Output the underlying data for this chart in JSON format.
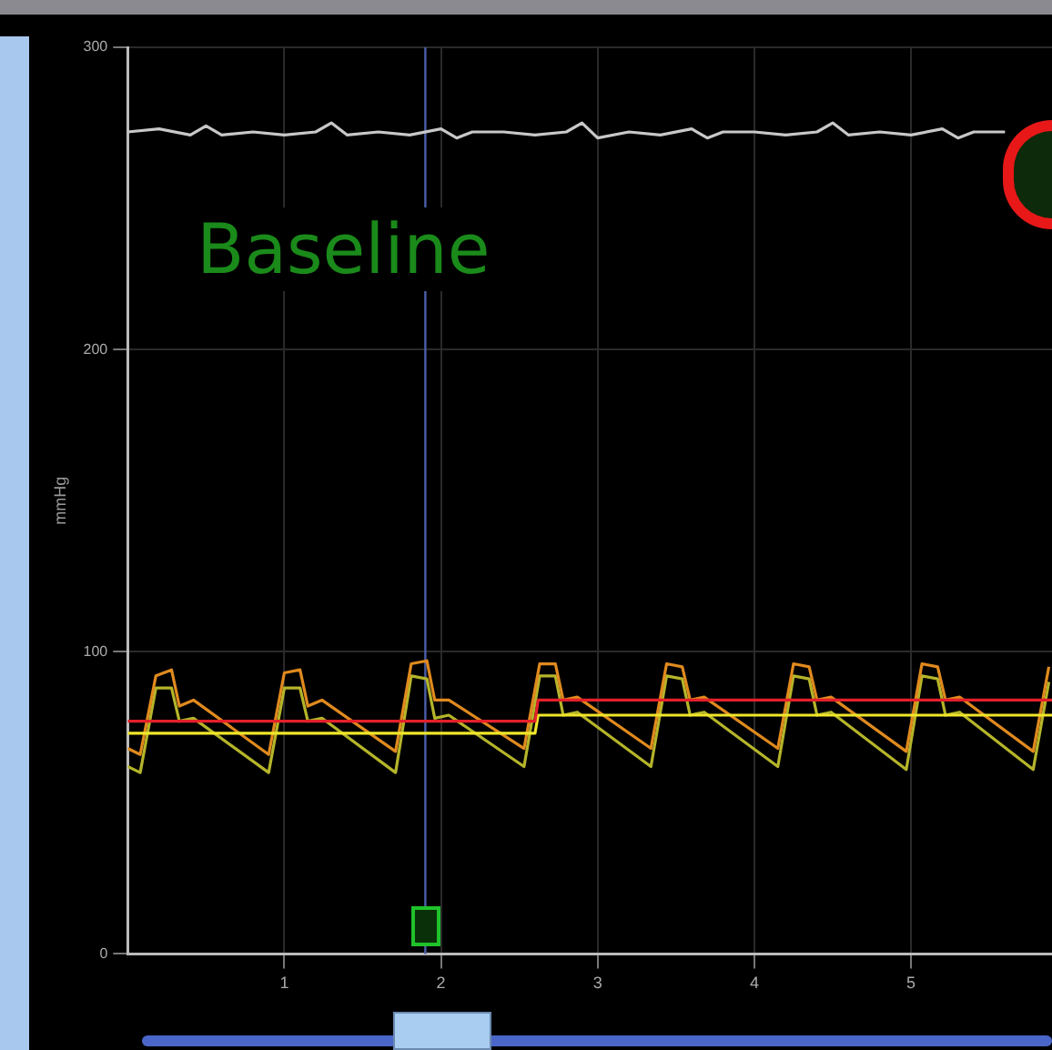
{
  "chart_data": {
    "type": "line",
    "ylabel": "mmHg",
    "annotations": [
      "Baseline"
    ],
    "xlim": [
      0,
      5.9
    ],
    "xticks": [
      1,
      2,
      3,
      4,
      5
    ],
    "ylim": [
      0,
      300
    ],
    "yticks": [
      0,
      100,
      200,
      300
    ],
    "grid": true,
    "ref_lines": [
      {
        "axis": "x",
        "value": 1.9,
        "color": "#4a5fa8"
      }
    ],
    "series": [
      {
        "color": "#c8c8c8",
        "x": [
          0,
          0.2,
          0.4,
          0.5,
          0.6,
          0.8,
          1.0,
          1.2,
          1.3,
          1.4,
          1.6,
          1.8,
          2.0,
          2.1,
          2.2,
          2.4,
          2.6,
          2.8,
          2.9,
          3.0,
          3.2,
          3.4,
          3.6,
          3.7,
          3.8,
          4.0,
          4.2,
          4.4,
          4.5,
          4.6,
          4.8,
          5.0,
          5.2,
          5.3,
          5.4,
          5.6
        ],
        "values": [
          272,
          273,
          271,
          274,
          271,
          272,
          271,
          272,
          275,
          271,
          272,
          271,
          273,
          270,
          272,
          272,
          271,
          272,
          275,
          270,
          272,
          271,
          273,
          270,
          272,
          272,
          271,
          272,
          275,
          271,
          272,
          271,
          273,
          270,
          272,
          272
        ]
      },
      {
        "color": "#e3202a",
        "x": [
          0,
          2.6,
          2.62,
          5.9
        ],
        "values": [
          77,
          77,
          84,
          84
        ]
      },
      {
        "color": "#f0e62a",
        "x": [
          0,
          2.6,
          2.62,
          5.9
        ],
        "values": [
          73,
          73,
          79,
          79
        ]
      },
      {
        "color": "#e08a1e",
        "x": [
          0,
          0.08,
          0.18,
          0.28,
          0.33,
          0.42,
          0.9,
          1.0,
          1.1,
          1.15,
          1.24,
          1.71,
          1.81,
          1.91,
          1.96,
          2.05,
          2.53,
          2.63,
          2.73,
          2.78,
          2.87,
          3.34,
          3.44,
          3.54,
          3.59,
          3.68,
          4.15,
          4.25,
          4.35,
          4.4,
          4.49,
          4.97,
          5.07,
          5.17,
          5.22,
          5.31,
          5.78,
          5.88
        ],
        "values": [
          68,
          66,
          92,
          94,
          82,
          84,
          66,
          93,
          94,
          82,
          84,
          67,
          96,
          97,
          84,
          84,
          68,
          96,
          96,
          84,
          85,
          68,
          96,
          95,
          84,
          85,
          68,
          96,
          95,
          84,
          85,
          67,
          96,
          95,
          84,
          85,
          67,
          95
        ]
      },
      {
        "color": "#b5b52a",
        "x": [
          0,
          0.08,
          0.18,
          0.28,
          0.33,
          0.42,
          0.9,
          1.0,
          1.1,
          1.15,
          1.24,
          1.71,
          1.81,
          1.91,
          1.96,
          2.05,
          2.53,
          2.63,
          2.73,
          2.78,
          2.87,
          3.34,
          3.44,
          3.54,
          3.59,
          3.68,
          4.15,
          4.25,
          4.35,
          4.4,
          4.49,
          4.97,
          5.07,
          5.17,
          5.22,
          5.31,
          5.78,
          5.88
        ],
        "values": [
          62,
          60,
          88,
          88,
          77,
          78,
          60,
          88,
          88,
          77,
          78,
          60,
          92,
          91,
          78,
          79,
          62,
          92,
          92,
          79,
          80,
          62,
          92,
          91,
          79,
          80,
          62,
          92,
          91,
          79,
          80,
          61,
          92,
          91,
          79,
          80,
          61,
          90
        ]
      }
    ]
  }
}
